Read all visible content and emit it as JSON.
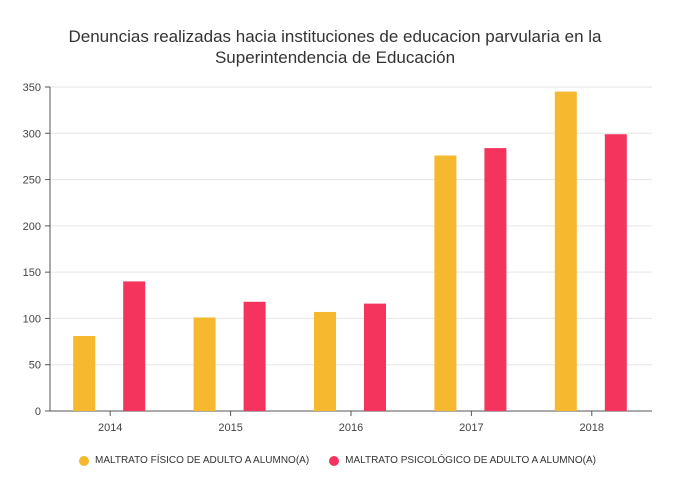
{
  "chart_data": {
    "type": "bar",
    "title_line1": "Denuncias realizadas hacia instituciones de educacion parvularia en la",
    "title_line2": "Superintendencia de Educación",
    "categories": [
      "2014",
      "2015",
      "2016",
      "2017",
      "2018"
    ],
    "series": [
      {
        "name": "MALTRATO FÍSICO DE ADULTO A ALUMNO(A)",
        "color": "#F5B82E",
        "values": [
          81,
          101,
          107,
          276,
          345
        ]
      },
      {
        "name": "MALTRATO PSICOLÓGICO DE ADULTO A ALUMNO(A)",
        "color": "#F5345E",
        "values": [
          140,
          118,
          116,
          284,
          299
        ]
      }
    ],
    "ylim": [
      0,
      350
    ],
    "yticks": [
      0,
      50,
      100,
      150,
      200,
      250,
      300,
      350
    ],
    "grid": true,
    "legend_position": "bottom"
  }
}
